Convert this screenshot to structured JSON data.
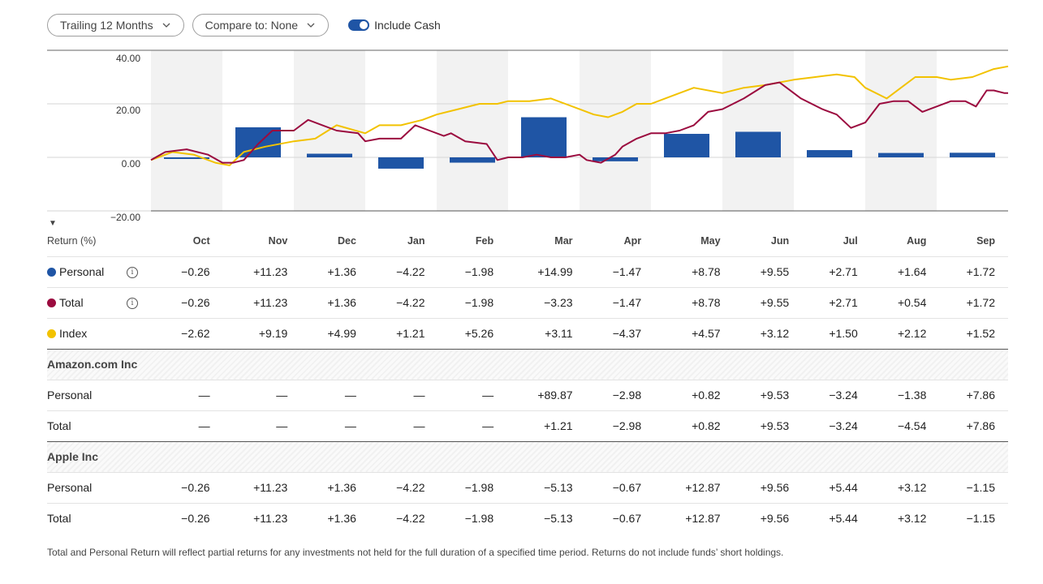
{
  "controls": {
    "period_label": "Trailing 12 Months",
    "compare_label": "Compare to: None",
    "include_cash_label": "Include Cash",
    "include_cash_on": true
  },
  "colors": {
    "personal": "#1f55a5",
    "total": "#9b0b3f",
    "index": "#f2c200",
    "stripe": "#f2f2f2"
  },
  "chart_data": {
    "type": "bar",
    "categories": [
      "Oct",
      "Nov",
      "Dec",
      "Jan",
      "Feb",
      "Mar",
      "Apr",
      "May",
      "Jun",
      "Jul",
      "Aug",
      "Sep"
    ],
    "ylim": [
      -20,
      40
    ],
    "yticks": [
      "40.00",
      "20.00",
      "0.00",
      "−20.00"
    ],
    "series": [
      {
        "name": "Personal",
        "type": "bar",
        "values": [
          -0.26,
          11.23,
          1.36,
          -4.22,
          -1.98,
          14.99,
          -1.47,
          8.78,
          9.55,
          2.71,
          1.64,
          1.72
        ]
      },
      {
        "name": "Total",
        "type": "line",
        "x": [
          0,
          0.2,
          0.5,
          0.8,
          1,
          1.15,
          1.3,
          1.5,
          1.7,
          2,
          2.2,
          2.4,
          2.6,
          2.9,
          3.0,
          3.2,
          3.5,
          3.7,
          3.9,
          4.1,
          4.2,
          4.4,
          4.7,
          4.85,
          5.0,
          5.2,
          5.4,
          5.6,
          5.8,
          6.0,
          6.1,
          6.3,
          6.5,
          6.6,
          6.8,
          7.0,
          7.2,
          7.4,
          7.6,
          7.8,
          8.0,
          8.3,
          8.6,
          8.8,
          9.1,
          9.4,
          9.6,
          9.8,
          10.0,
          10.2,
          10.4,
          10.6,
          10.8,
          11.0,
          11.2,
          11.4,
          11.55,
          11.7,
          11.8,
          11.95,
          12.0
        ],
        "values": [
          -1,
          2,
          3,
          1,
          -2,
          -2,
          -1,
          5,
          10,
          10,
          14,
          12,
          10,
          9,
          6,
          7,
          7,
          12,
          10,
          8,
          9,
          6,
          5,
          -1,
          0,
          0,
          1,
          0,
          0,
          1,
          -1,
          -2,
          1,
          4,
          7,
          9,
          9,
          10,
          12,
          17,
          18,
          22,
          27,
          28,
          22,
          18,
          16,
          11,
          13,
          20,
          21,
          21,
          17,
          19,
          21,
          21,
          19,
          25,
          25,
          24,
          24
        ]
      },
      {
        "name": "Index",
        "type": "line",
        "x": [
          0,
          0.3,
          0.6,
          0.9,
          1.1,
          1.3,
          1.6,
          2.0,
          2.3,
          2.6,
          3.0,
          3.2,
          3.5,
          3.8,
          4.0,
          4.3,
          4.6,
          4.85,
          5.0,
          5.3,
          5.6,
          5.8,
          6.0,
          6.2,
          6.4,
          6.6,
          6.8,
          7.0,
          7.3,
          7.6,
          8.0,
          8.3,
          8.6,
          9.0,
          9.3,
          9.6,
          9.85,
          10.0,
          10.3,
          10.5,
          10.7,
          11.0,
          11.2,
          11.5,
          11.8,
          12.0
        ],
        "values": [
          -1,
          2,
          1,
          -2,
          -3,
          2,
          4,
          6,
          7,
          12,
          9,
          12,
          12,
          14,
          16,
          18,
          20,
          20,
          21,
          21,
          22,
          20,
          18,
          16,
          15,
          17,
          20,
          20,
          23,
          26,
          24,
          26,
          27,
          29,
          30,
          31,
          30,
          26,
          22,
          26,
          30,
          30,
          29,
          30,
          33,
          34
        ]
      }
    ]
  },
  "table": {
    "header_label": "Return (%)",
    "months": [
      "Oct",
      "Nov",
      "Dec",
      "Jan",
      "Feb",
      "Mar",
      "Apr",
      "May",
      "Jun",
      "Jul",
      "Aug",
      "Sep"
    ],
    "rows": [
      {
        "kind": "series",
        "label": "Personal",
        "dot": "personal",
        "info": true,
        "values": [
          "−0.26",
          "+11.23",
          "+1.36",
          "−4.22",
          "−1.98",
          "+14.99",
          "−1.47",
          "+8.78",
          "+9.55",
          "+2.71",
          "+1.64",
          "+1.72"
        ]
      },
      {
        "kind": "series",
        "label": "Total",
        "dot": "total",
        "info": true,
        "values": [
          "−0.26",
          "+11.23",
          "+1.36",
          "−4.22",
          "−1.98",
          "−3.23",
          "−1.47",
          "+8.78",
          "+9.55",
          "+2.71",
          "+0.54",
          "+1.72"
        ]
      },
      {
        "kind": "series",
        "label": "Index",
        "dot": "index",
        "info": false,
        "values": [
          "−2.62",
          "+9.19",
          "+4.99",
          "+1.21",
          "+5.26",
          "+3.11",
          "−4.37",
          "+4.57",
          "+3.12",
          "+1.50",
          "+2.12",
          "+1.52"
        ]
      },
      {
        "kind": "section",
        "label": "Amazon.com Inc"
      },
      {
        "kind": "series",
        "label": "Personal",
        "info": false,
        "values": [
          "—",
          "—",
          "—",
          "—",
          "—",
          "+89.87",
          "−2.98",
          "+0.82",
          "+9.53",
          "−3.24",
          "−1.38",
          "+7.86"
        ]
      },
      {
        "kind": "series",
        "label": "Total",
        "info": false,
        "values": [
          "—",
          "—",
          "—",
          "—",
          "—",
          "+1.21",
          "−2.98",
          "+0.82",
          "+9.53",
          "−3.24",
          "−4.54",
          "+7.86"
        ]
      },
      {
        "kind": "section",
        "label": "Apple Inc"
      },
      {
        "kind": "series",
        "label": "Personal",
        "info": false,
        "values": [
          "−0.26",
          "+11.23",
          "+1.36",
          "−4.22",
          "−1.98",
          "−5.13",
          "−0.67",
          "+12.87",
          "+9.56",
          "+5.44",
          "+3.12",
          "−1.15"
        ]
      },
      {
        "kind": "series",
        "label": "Total",
        "info": false,
        "values": [
          "−0.26",
          "+11.23",
          "+1.36",
          "−4.22",
          "−1.98",
          "−5.13",
          "−0.67",
          "+12.87",
          "+9.56",
          "+5.44",
          "+3.12",
          "−1.15"
        ]
      }
    ]
  },
  "info_glyph": "i",
  "collapse_glyph": "▼",
  "footnote": "Total and Personal Return will reflect partial returns for any investments not held for the full duration of a specified time period. Returns do not include funds’ short holdings."
}
